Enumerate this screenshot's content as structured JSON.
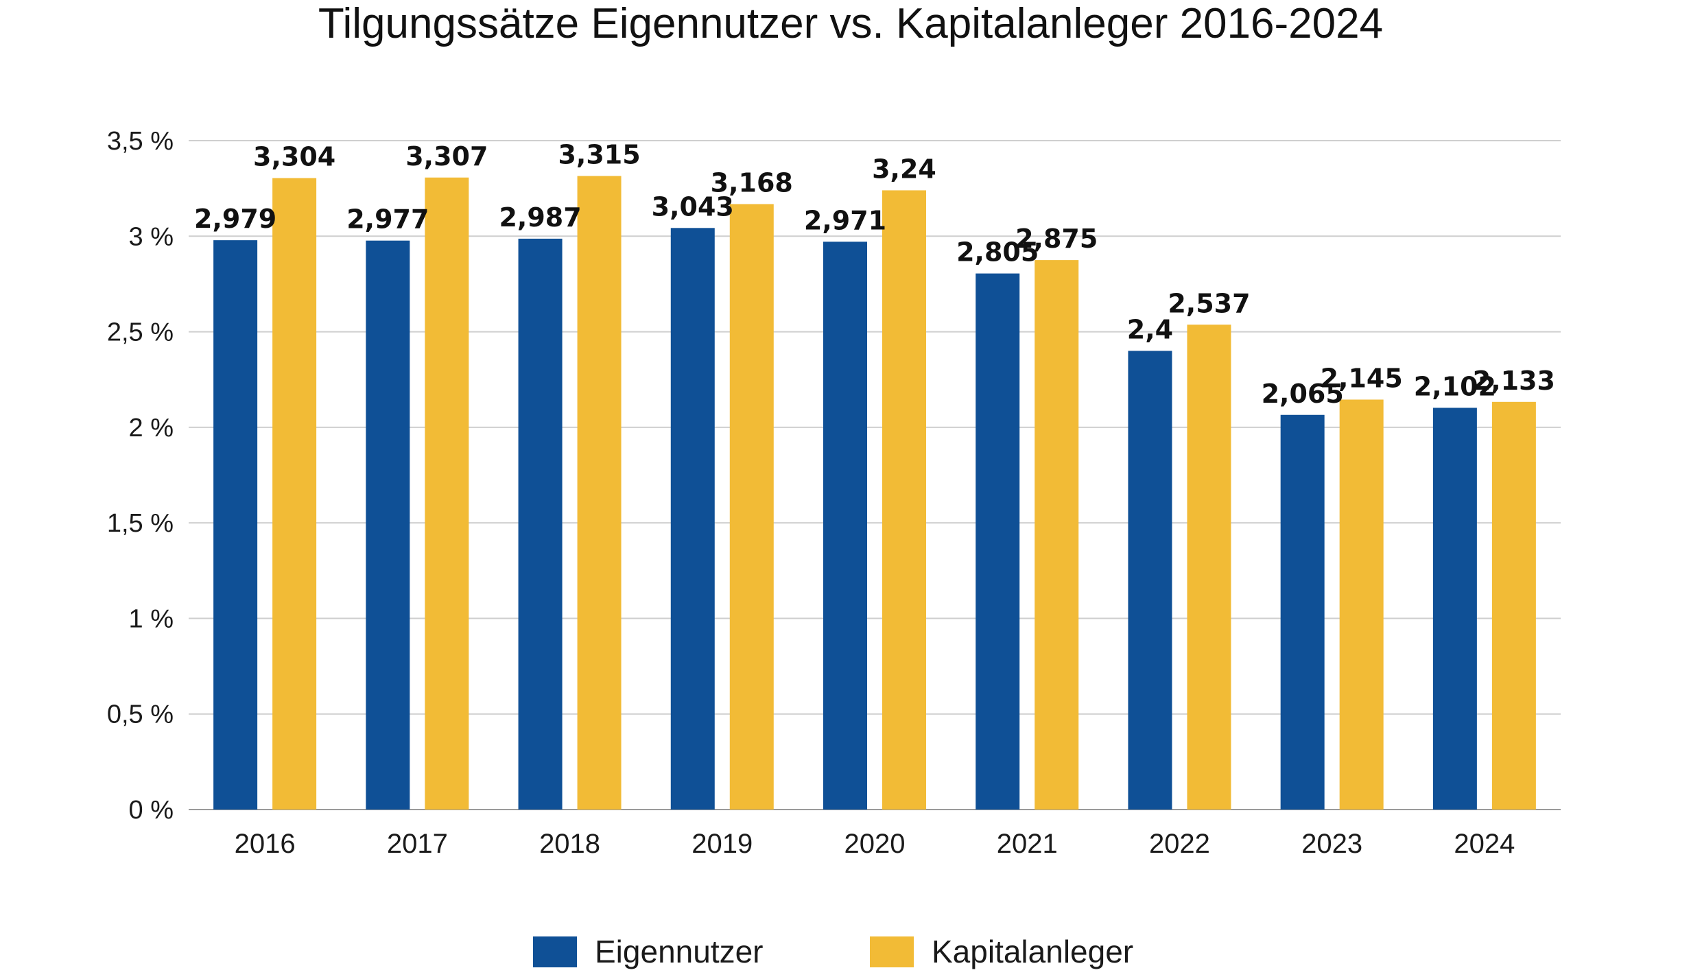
{
  "chart_data": {
    "type": "bar",
    "title": "Tilgungssätze Eigennutzer vs. Kapitalanleger 2016-2024",
    "xlabel": "",
    "ylabel": "",
    "categories": [
      "2016",
      "2017",
      "2018",
      "2019",
      "2020",
      "2021",
      "2022",
      "2023",
      "2024"
    ],
    "series": [
      {
        "name": "Eigennutzer",
        "color": "#0f5096",
        "values": [
          2.979,
          2.977,
          2.987,
          3.043,
          2.971,
          2.805,
          2.4,
          2.065,
          2.102
        ],
        "labels": [
          "2,979",
          "2,977",
          "2,987",
          "3,043",
          "2,971",
          "2,805",
          "2,4",
          "2,065",
          "2,102"
        ]
      },
      {
        "name": "Kapitalanleger",
        "color": "#f2bb36",
        "values": [
          3.304,
          3.307,
          3.315,
          3.168,
          3.24,
          2.875,
          2.537,
          2.145,
          2.133
        ],
        "labels": [
          "3,304",
          "3,307",
          "3,315",
          "3,168",
          "3,24",
          "2,875",
          "2,537",
          "2,145",
          "2,133"
        ]
      }
    ],
    "ylim": [
      0,
      3.5
    ],
    "yticks": [
      0,
      0.5,
      1,
      1.5,
      2,
      2.5,
      3,
      3.5
    ],
    "ytick_labels": [
      "0 %",
      "0,5 %",
      "1 %",
      "1,5 %",
      "2 %",
      "2,5 %",
      "3 %",
      "3,5 %"
    ],
    "grid": true,
    "legend_position": "bottom-center"
  }
}
